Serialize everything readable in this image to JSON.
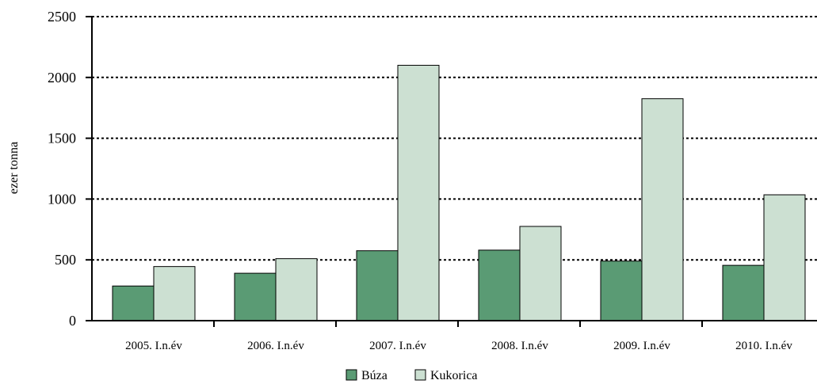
{
  "chart_data": {
    "type": "bar",
    "categories": [
      "2005. I.n.év",
      "2006. I.n.év",
      "2007. I.n.év",
      "2008. I.n.év",
      "2009. I.n.év",
      "2010. I.n.év"
    ],
    "series": [
      {
        "name": "Búza",
        "values": [
          285,
          390,
          575,
          580,
          490,
          455
        ],
        "color": "#5a9b74"
      },
      {
        "name": "Kukorica",
        "values": [
          445,
          510,
          2100,
          775,
          1825,
          1035
        ],
        "color": "#cce0d2"
      }
    ],
    "ylabel": "ezer tonna",
    "xlabel": "",
    "ylim": [
      0,
      2500
    ],
    "yticks": [
      0,
      500,
      1000,
      1500,
      2000,
      2500
    ],
    "grid": true,
    "legend": "bottom-center"
  }
}
